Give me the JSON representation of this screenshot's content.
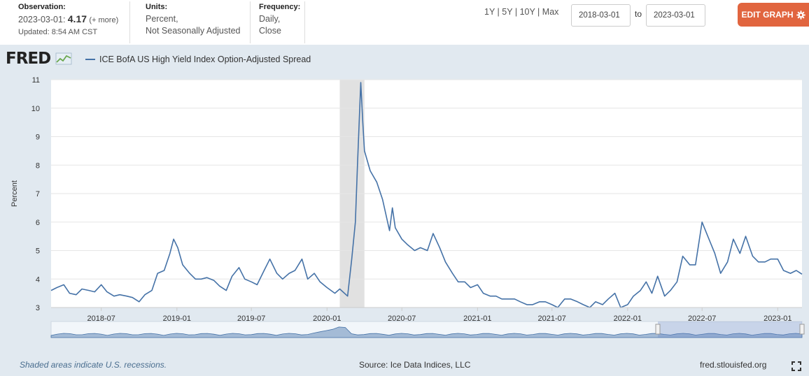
{
  "observation": {
    "label": "Observation:",
    "date": "2023-03-01:",
    "value": "4.17",
    "more": "(+ more)",
    "updated": "Updated: 8:54 AM CST"
  },
  "units": {
    "label": "Units:",
    "line1": "Percent,",
    "line2": "Not Seasonally Adjusted"
  },
  "frequency": {
    "label": "Frequency:",
    "line1": "Daily,",
    "line2": "Close"
  },
  "range_links": [
    "1Y",
    "5Y",
    "10Y",
    "Max"
  ],
  "date_range": {
    "start": "2018-03-01",
    "to_label": "to",
    "end": "2023-03-01"
  },
  "edit_button": "EDIT GRAPH",
  "logo_text": "FRED",
  "footer": {
    "note": "Shaded areas indicate U.S. recessions.",
    "source": "Source: Ice Data Indices, LLC",
    "url": "fred.stlouisfed.org"
  },
  "colors": {
    "line": "#4572a7",
    "recession": "#e1e1e1",
    "edit": "#e1653f"
  },
  "chart_data": {
    "type": "line",
    "title": "",
    "legend": [
      "ICE BofA US High Yield Index Option-Adjusted Spread"
    ],
    "ylabel": "Percent",
    "xlabel": "",
    "ylim": [
      3,
      11
    ],
    "yticks": [
      3,
      4,
      5,
      6,
      7,
      8,
      9,
      10,
      11
    ],
    "xlim": [
      "2018-03-01",
      "2023-03-01"
    ],
    "xticks": [
      "2018-07",
      "2019-01",
      "2019-07",
      "2020-01",
      "2020-07",
      "2021-01",
      "2021-07",
      "2022-01",
      "2022-07",
      "2023-01"
    ],
    "recession": {
      "start": "2020-02",
      "end": "2020-04"
    },
    "series": [
      {
        "name": "ICE BofA US High Yield Index Option-Adjusted Spread",
        "x": [
          "2018-03-01",
          "2018-03-15",
          "2018-04-01",
          "2018-04-15",
          "2018-05-01",
          "2018-05-15",
          "2018-06-01",
          "2018-06-15",
          "2018-07-01",
          "2018-07-15",
          "2018-08-01",
          "2018-08-15",
          "2018-09-01",
          "2018-09-15",
          "2018-10-01",
          "2018-10-15",
          "2018-11-01",
          "2018-11-15",
          "2018-12-01",
          "2018-12-15",
          "2018-12-24",
          "2019-01-03",
          "2019-01-15",
          "2019-02-01",
          "2019-02-15",
          "2019-03-01",
          "2019-03-15",
          "2019-04-01",
          "2019-04-15",
          "2019-05-01",
          "2019-05-15",
          "2019-06-01",
          "2019-06-15",
          "2019-07-01",
          "2019-07-15",
          "2019-08-01",
          "2019-08-15",
          "2019-09-01",
          "2019-09-15",
          "2019-10-01",
          "2019-10-15",
          "2019-11-01",
          "2019-11-15",
          "2019-12-01",
          "2019-12-15",
          "2020-01-01",
          "2020-01-20",
          "2020-02-01",
          "2020-02-20",
          "2020-03-01",
          "2020-03-10",
          "2020-03-15",
          "2020-03-23",
          "2020-03-28",
          "2020-04-01",
          "2020-04-15",
          "2020-05-01",
          "2020-05-15",
          "2020-06-01",
          "2020-06-08",
          "2020-06-15",
          "2020-07-01",
          "2020-07-15",
          "2020-08-01",
          "2020-08-15",
          "2020-09-01",
          "2020-09-15",
          "2020-10-01",
          "2020-10-15",
          "2020-11-01",
          "2020-11-15",
          "2020-12-01",
          "2020-12-15",
          "2021-01-01",
          "2021-01-15",
          "2021-02-01",
          "2021-02-15",
          "2021-03-01",
          "2021-03-15",
          "2021-04-01",
          "2021-04-15",
          "2021-05-01",
          "2021-05-15",
          "2021-06-01",
          "2021-06-15",
          "2021-07-01",
          "2021-07-15",
          "2021-08-01",
          "2021-08-15",
          "2021-09-01",
          "2021-09-15",
          "2021-10-01",
          "2021-10-15",
          "2021-11-01",
          "2021-11-15",
          "2021-12-01",
          "2021-12-15",
          "2022-01-01",
          "2022-01-15",
          "2022-02-01",
          "2022-02-15",
          "2022-03-01",
          "2022-03-15",
          "2022-04-01",
          "2022-04-15",
          "2022-05-01",
          "2022-05-15",
          "2022-06-01",
          "2022-06-15",
          "2022-07-01",
          "2022-07-15",
          "2022-08-01",
          "2022-08-15",
          "2022-09-01",
          "2022-09-15",
          "2022-10-01",
          "2022-10-15",
          "2022-11-01",
          "2022-11-15",
          "2022-12-01",
          "2022-12-15",
          "2023-01-01",
          "2023-01-15",
          "2023-02-01",
          "2023-02-15",
          "2023-03-01"
        ],
        "values": [
          3.6,
          3.7,
          3.8,
          3.5,
          3.45,
          3.65,
          3.6,
          3.55,
          3.8,
          3.55,
          3.4,
          3.45,
          3.4,
          3.35,
          3.2,
          3.45,
          3.6,
          4.2,
          4.3,
          4.9,
          5.4,
          5.1,
          4.5,
          4.2,
          4.0,
          4.0,
          4.05,
          3.95,
          3.75,
          3.6,
          4.1,
          4.4,
          4.0,
          3.9,
          3.8,
          4.3,
          4.7,
          4.2,
          4.0,
          4.2,
          4.3,
          4.7,
          4.0,
          4.2,
          3.9,
          3.7,
          3.5,
          3.65,
          3.4,
          4.7,
          6.0,
          8.0,
          10.9,
          9.5,
          8.5,
          7.8,
          7.4,
          6.8,
          5.7,
          6.5,
          5.8,
          5.4,
          5.2,
          5.0,
          5.1,
          5.0,
          5.6,
          5.1,
          4.6,
          4.2,
          3.9,
          3.9,
          3.7,
          3.8,
          3.5,
          3.4,
          3.4,
          3.3,
          3.3,
          3.3,
          3.2,
          3.1,
          3.1,
          3.2,
          3.2,
          3.1,
          3.0,
          3.3,
          3.3,
          3.2,
          3.1,
          3.0,
          3.2,
          3.1,
          3.3,
          3.5,
          3.0,
          3.1,
          3.4,
          3.6,
          3.9,
          3.5,
          4.1,
          3.4,
          3.6,
          3.9,
          4.8,
          4.5,
          4.5,
          6.0,
          5.5,
          4.9,
          4.2,
          4.6,
          5.4,
          4.9,
          5.5,
          4.8,
          4.6,
          4.6,
          4.7,
          4.7,
          4.3,
          4.2,
          4.3,
          4.17
        ]
      }
    ]
  }
}
